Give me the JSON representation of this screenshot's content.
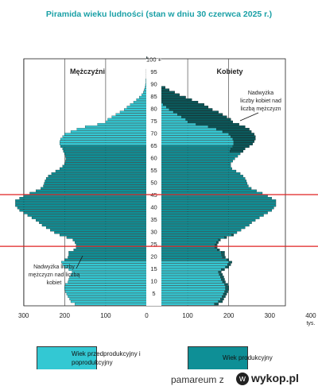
{
  "title": "Piramida wieku ludności (stan w dniu 30 czerwca 2025 r.)",
  "colors": {
    "preproductive": "#33c8d3",
    "productive": "#0e8f96",
    "excess": "#0b5a5c",
    "marker": "#e02020",
    "title": "#1aa0a6"
  },
  "chart_data": {
    "type": "bar",
    "orientation": "horizontal-pyramid",
    "title": "Piramida wieku ludności (stan w dniu 30 czerwca 2025 r.)",
    "unit": "tys.",
    "xlim": [
      0,
      400
    ],
    "x_ticks": [
      "400",
      "300",
      "200",
      "100",
      "0",
      "100",
      "200",
      "300",
      "400"
    ],
    "y_ticks": [
      "100 +",
      "95",
      "90",
      "85",
      "80",
      "75",
      "70",
      "65",
      "60",
      "55",
      "50",
      "45",
      "40",
      "35",
      "30",
      "25",
      "20",
      "15",
      "10",
      "5",
      "0"
    ],
    "series": [
      {
        "name": "Mężczyźni",
        "values": [
          175,
          185,
          188,
          192,
          195,
          198,
          200,
          200,
          198,
          192,
          190,
          188,
          185,
          182,
          190,
          200,
          205,
          208,
          200,
          192,
          190,
          190,
          178,
          172,
          172,
          175,
          180,
          195,
          212,
          225,
          235,
          245,
          255,
          262,
          270,
          280,
          290,
          300,
          310,
          315,
          320,
          320,
          320,
          310,
          300,
          285,
          270,
          258,
          252,
          250,
          248,
          245,
          240,
          232,
          222,
          212,
          205,
          200,
          198,
          197,
          198,
          200,
          203,
          205,
          210,
          212,
          212,
          210,
          205,
          200,
          185,
          170,
          150,
          120,
          100,
          95,
          85,
          75,
          65,
          55,
          48,
          40,
          32,
          25,
          18,
          12,
          8,
          6,
          4,
          3,
          2,
          2,
          1,
          1,
          1,
          1,
          0.5,
          0.3,
          0.2,
          0.1,
          0.1
        ]
      },
      {
        "name": "Kobiety",
        "values": [
          165,
          175,
          180,
          184,
          187,
          190,
          192,
          192,
          190,
          185,
          182,
          180,
          177,
          175,
          182,
          192,
          197,
          200,
          195,
          185,
          183,
          182,
          172,
          166,
          166,
          170,
          175,
          190,
          207,
          220,
          230,
          240,
          250,
          256,
          265,
          275,
          285,
          295,
          305,
          310,
          315,
          315,
          315,
          305,
          295,
          282,
          268,
          255,
          248,
          245,
          243,
          240,
          235,
          228,
          218,
          208,
          205,
          205,
          210,
          215,
          222,
          228,
          235,
          240,
          250,
          258,
          262,
          265,
          265,
          262,
          255,
          250,
          240,
          225,
          210,
          205,
          195,
          185,
          175,
          160,
          150,
          140,
          125,
          110,
          95,
          80,
          68,
          55,
          45,
          35,
          28,
          20,
          14,
          10,
          7,
          5,
          3,
          2,
          1.5,
          1,
          1
        ]
      }
    ],
    "excess_women_over_men_from_age": 62,
    "excess_men_over_women_until_age": 28,
    "marked_ages": [
      45,
      24
    ],
    "annotations": {
      "men_label": "Mężczyźni",
      "women_label": "Kobiety",
      "excess_women": "Nadwyżka liczby kobiet nad liczbą mężczyzn",
      "excess_men": "Nadwyżka liczby mężczyzn nad liczbą kobiet"
    }
  },
  "legend": [
    {
      "label": "Wiek przedprodukcyjny i poprodukcyjny",
      "color": "#33c8d3"
    },
    {
      "label": "Wiek produkcyjny",
      "color": "#0e8f96"
    }
  ],
  "footer": {
    "user": "pamareum",
    "connector": "z",
    "site": "wykop.pl",
    "logo_icon": "wykop-logo-icon"
  }
}
